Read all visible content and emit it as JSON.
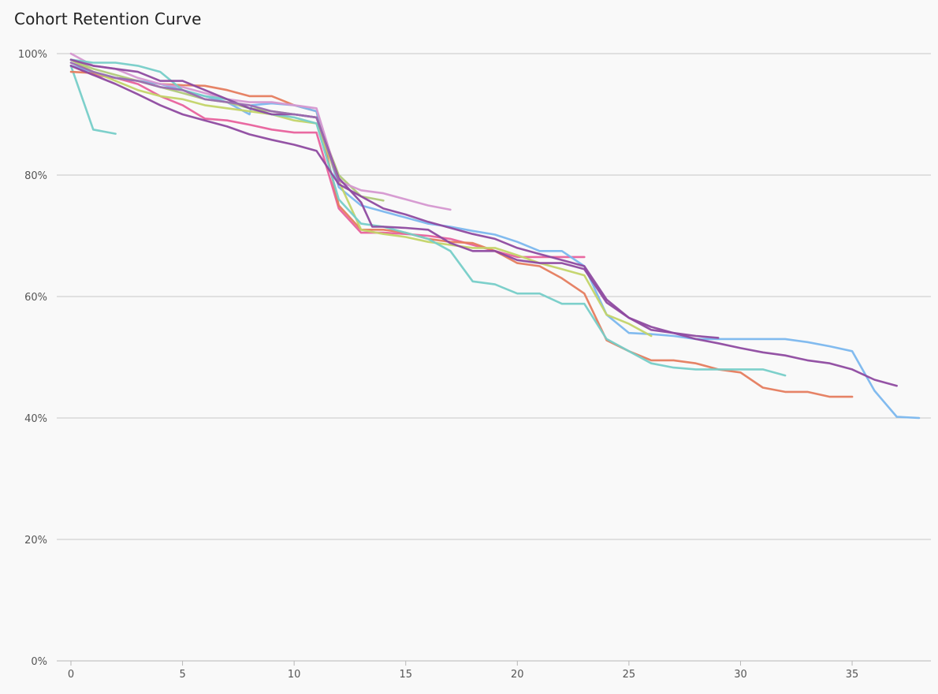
{
  "chart_data": {
    "type": "line",
    "title": "Cohort Retention Curve",
    "xlabel": "",
    "ylabel": "",
    "xlim": [
      0,
      38
    ],
    "ylim": [
      0,
      100
    ],
    "x_ticks": [
      0,
      5,
      10,
      15,
      20,
      25,
      30,
      35
    ],
    "y_ticks": [
      {
        "value": 0,
        "label": "0%"
      },
      {
        "value": 20,
        "label": "20%"
      },
      {
        "value": 40,
        "label": "40%"
      },
      {
        "value": 60,
        "label": "60%"
      },
      {
        "value": 80,
        "label": "80%"
      },
      {
        "value": 100,
        "label": "100%"
      }
    ],
    "grid": "horizontal",
    "legend": "none",
    "series": [
      {
        "color": "#76cdc8",
        "points": [
          [
            0,
            98
          ],
          [
            1,
            87.5
          ],
          [
            2,
            86.8
          ]
        ]
      },
      {
        "color": "#e8619c",
        "points": [
          [
            0,
            98
          ],
          [
            1,
            96.5
          ],
          [
            2,
            96
          ],
          [
            3,
            95
          ],
          [
            4,
            93
          ],
          [
            5,
            91.5
          ],
          [
            6,
            89.3
          ],
          [
            7,
            89
          ],
          [
            8,
            88.3
          ],
          [
            9,
            87.5
          ],
          [
            10,
            87
          ],
          [
            11,
            87
          ],
          [
            12,
            74.5
          ],
          [
            13,
            70.5
          ],
          [
            14,
            70.5
          ],
          [
            15,
            70.3
          ],
          [
            16,
            70
          ],
          [
            17,
            69.5
          ],
          [
            18,
            68.5
          ],
          [
            19,
            67.5
          ],
          [
            20,
            66.5
          ],
          [
            21,
            66.5
          ],
          [
            22,
            66.5
          ],
          [
            23,
            66.5
          ]
        ]
      },
      {
        "color": "#e57c5e",
        "points": [
          [
            0,
            97
          ],
          [
            1,
            96.8
          ],
          [
            2,
            96
          ],
          [
            3,
            95.5
          ],
          [
            4,
            95
          ],
          [
            5,
            94.8
          ],
          [
            6,
            94.7
          ],
          [
            7,
            94
          ],
          [
            8,
            93
          ],
          [
            9,
            93
          ],
          [
            10,
            91.5
          ],
          [
            11,
            90.5
          ],
          [
            12,
            75
          ],
          [
            13,
            71
          ],
          [
            14,
            71
          ],
          [
            15,
            70.5
          ],
          [
            16,
            69.5
          ],
          [
            17,
            69
          ],
          [
            18,
            68.8
          ],
          [
            19,
            67.5
          ],
          [
            20,
            65.5
          ],
          [
            21,
            65
          ],
          [
            22,
            63
          ],
          [
            23,
            60.5
          ],
          [
            24,
            52.8
          ],
          [
            25,
            51
          ],
          [
            26,
            49.5
          ],
          [
            27,
            49.5
          ],
          [
            28,
            49
          ],
          [
            29,
            48
          ],
          [
            30,
            47.5
          ],
          [
            31,
            45
          ],
          [
            32,
            44.3
          ],
          [
            33,
            44.3
          ],
          [
            34,
            43.5
          ],
          [
            35,
            43.5
          ]
        ]
      },
      {
        "color": "#7bb7ee",
        "points": [
          [
            0,
            98
          ],
          [
            1,
            97
          ],
          [
            2,
            96
          ],
          [
            3,
            95.5
          ],
          [
            4,
            95
          ],
          [
            5,
            94
          ],
          [
            6,
            93
          ],
          [
            7,
            92
          ],
          [
            8,
            90
          ],
          [
            8.1,
            91.5
          ],
          [
            9,
            91.8
          ],
          [
            10,
            91.5
          ],
          [
            11,
            90.5
          ],
          [
            12,
            78
          ],
          [
            13,
            75
          ],
          [
            14,
            74
          ],
          [
            15,
            73
          ],
          [
            16,
            72
          ],
          [
            17,
            71.5
          ],
          [
            18,
            70.8
          ],
          [
            19,
            70.2
          ],
          [
            20,
            69
          ],
          [
            21,
            67.5
          ],
          [
            22,
            67.5
          ],
          [
            23,
            65
          ],
          [
            24,
            57
          ],
          [
            25,
            54
          ],
          [
            26,
            53.8
          ],
          [
            27,
            53.5
          ],
          [
            28,
            53
          ],
          [
            29,
            53
          ],
          [
            30,
            53
          ],
          [
            31,
            53
          ],
          [
            32,
            53
          ],
          [
            33,
            52.5
          ],
          [
            34,
            51.8
          ],
          [
            35,
            51
          ],
          [
            36,
            44.5
          ],
          [
            37,
            40.2
          ],
          [
            38,
            40
          ]
        ]
      },
      {
        "color": "#c3d468",
        "points": [
          [
            0,
            99
          ],
          [
            1,
            97
          ],
          [
            2,
            95.5
          ],
          [
            3,
            94
          ],
          [
            4,
            93
          ],
          [
            5,
            92.5
          ],
          [
            6,
            91.5
          ],
          [
            7,
            91
          ],
          [
            8,
            90.5
          ],
          [
            9,
            90
          ],
          [
            10,
            89
          ],
          [
            11,
            88.5
          ],
          [
            12,
            79
          ],
          [
            13,
            71
          ],
          [
            14,
            70.3
          ],
          [
            15,
            69.8
          ],
          [
            16,
            69
          ],
          [
            17,
            68.5
          ],
          [
            18,
            68
          ],
          [
            19,
            68
          ],
          [
            20,
            66.8
          ],
          [
            21,
            65.5
          ],
          [
            22,
            64.5
          ],
          [
            23,
            63.5
          ],
          [
            24,
            57
          ],
          [
            25,
            55.5
          ],
          [
            26,
            53.5
          ]
        ]
      },
      {
        "color": "#b0c97a",
        "points": [
          [
            0,
            99
          ],
          [
            1,
            97.5
          ],
          [
            2,
            96.5
          ],
          [
            3,
            95.5
          ],
          [
            4,
            94.5
          ],
          [
            5,
            93.5
          ],
          [
            6,
            92.5
          ],
          [
            7,
            92
          ],
          [
            8,
            91
          ],
          [
            9,
            90.5
          ],
          [
            10,
            90
          ],
          [
            11,
            89.5
          ],
          [
            12,
            80
          ],
          [
            13,
            76.5
          ],
          [
            14,
            75.8
          ]
        ]
      },
      {
        "color": "#d597d0",
        "points": [
          [
            0,
            100
          ],
          [
            1,
            98
          ],
          [
            2,
            97.5
          ],
          [
            3,
            96
          ],
          [
            4,
            95
          ],
          [
            5,
            94.5
          ],
          [
            6,
            93.5
          ],
          [
            7,
            92.5
          ],
          [
            8,
            92
          ],
          [
            9,
            92
          ],
          [
            10,
            91.5
          ],
          [
            11,
            91
          ],
          [
            12,
            79
          ],
          [
            13,
            77.5
          ],
          [
            14,
            77
          ],
          [
            15,
            76
          ],
          [
            16,
            75
          ],
          [
            17,
            74.3
          ]
        ]
      },
      {
        "color": "#76cdc8",
        "points": [
          [
            0,
            99
          ],
          [
            1,
            98.5
          ],
          [
            2,
            98.5
          ],
          [
            3,
            98
          ],
          [
            4,
            97
          ],
          [
            5,
            94
          ],
          [
            6,
            93
          ],
          [
            7,
            92.5
          ],
          [
            8,
            91
          ],
          [
            9,
            90
          ],
          [
            10,
            89.5
          ],
          [
            11,
            88.5
          ],
          [
            12,
            76
          ],
          [
            13,
            72
          ],
          [
            14,
            71.5
          ],
          [
            15,
            70.5
          ],
          [
            16,
            69.5
          ],
          [
            17,
            67.5
          ],
          [
            18,
            62.5
          ],
          [
            19,
            62
          ],
          [
            20,
            60.5
          ],
          [
            21,
            60.5
          ],
          [
            22,
            58.8
          ],
          [
            23,
            58.8
          ],
          [
            24,
            53
          ],
          [
            25,
            51
          ],
          [
            26,
            49
          ],
          [
            27,
            48.3
          ],
          [
            28,
            48
          ],
          [
            29,
            48
          ],
          [
            30,
            48
          ],
          [
            31,
            48
          ],
          [
            32,
            47
          ]
        ]
      },
      {
        "color": "#8e4aa0",
        "points": [
          [
            0,
            98
          ],
          [
            1,
            96.5
          ],
          [
            2,
            95
          ],
          [
            3,
            93.3
          ],
          [
            4,
            91.5
          ],
          [
            5,
            90
          ],
          [
            6,
            89
          ],
          [
            7,
            88
          ],
          [
            8,
            86.7
          ],
          [
            9,
            85.8
          ],
          [
            10,
            85
          ],
          [
            11,
            84
          ],
          [
            12,
            78.5
          ],
          [
            13,
            76.5
          ],
          [
            14,
            74.5
          ],
          [
            15,
            73.5
          ],
          [
            16,
            72.3
          ],
          [
            17,
            71.3
          ],
          [
            18,
            70.3
          ],
          [
            19,
            69.5
          ],
          [
            20,
            68
          ],
          [
            21,
            67
          ],
          [
            22,
            66
          ],
          [
            23,
            65
          ],
          [
            24,
            59.5
          ],
          [
            25,
            56.5
          ],
          [
            26,
            55
          ],
          [
            27,
            54
          ],
          [
            28,
            53
          ],
          [
            29,
            52.3
          ],
          [
            30,
            51.5
          ],
          [
            31,
            50.8
          ],
          [
            32,
            50.3
          ],
          [
            33,
            49.5
          ],
          [
            34,
            49
          ],
          [
            35,
            48
          ],
          [
            36,
            46.3
          ],
          [
            37,
            45.3
          ]
        ]
      },
      {
        "color": "#8e4aa0",
        "points": [
          [
            0,
            99
          ],
          [
            1,
            98
          ],
          [
            2,
            97.5
          ],
          [
            3,
            97
          ],
          [
            4,
            95.5
          ],
          [
            5,
            95.5
          ],
          [
            6,
            94
          ],
          [
            7,
            92.5
          ],
          [
            8,
            91
          ],
          [
            9,
            90
          ],
          [
            10,
            90
          ],
          [
            11,
            89.5
          ],
          [
            12,
            79.5
          ],
          [
            13,
            75.5
          ],
          [
            13.5,
            71.5
          ],
          [
            14,
            71.5
          ],
          [
            15,
            71.3
          ],
          [
            16,
            71
          ],
          [
            17,
            68.8
          ],
          [
            18,
            67.5
          ],
          [
            19,
            67.5
          ],
          [
            20,
            66
          ],
          [
            21,
            65.5
          ],
          [
            22,
            65.5
          ],
          [
            23,
            64.5
          ],
          [
            24,
            59
          ],
          [
            25,
            56.5
          ],
          [
            26,
            54.5
          ],
          [
            27,
            54
          ],
          [
            28,
            53.5
          ],
          [
            29,
            53.2
          ]
        ]
      },
      {
        "color": "#9a6bb0",
        "points": [
          [
            0,
            98.5
          ],
          [
            1,
            97
          ],
          [
            2,
            96
          ],
          [
            3,
            95.5
          ],
          [
            4,
            94.5
          ],
          [
            5,
            94
          ],
          [
            6,
            92.5
          ],
          [
            7,
            92
          ],
          [
            8,
            91.5
          ],
          [
            9,
            90.5
          ],
          [
            10,
            90
          ],
          [
            11,
            89.5
          ],
          [
            12,
            79
          ]
        ]
      }
    ]
  }
}
